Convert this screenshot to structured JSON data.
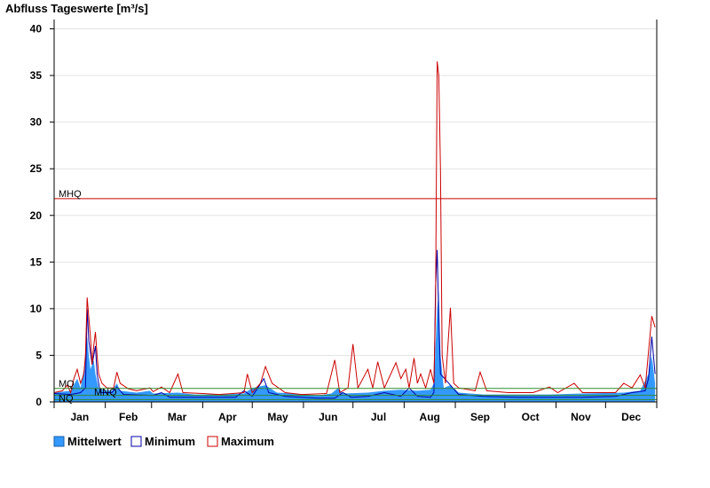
{
  "chart_data": {
    "type": "area",
    "title": "Abfluss Tageswerte [m³/s]",
    "ylim": [
      0,
      41
    ],
    "y_ticks": [
      0,
      5,
      10,
      15,
      20,
      25,
      30,
      35,
      40
    ],
    "months": [
      "Jan",
      "Feb",
      "Mar",
      "Apr",
      "May",
      "Jun",
      "Jul",
      "Aug",
      "Sep",
      "Oct",
      "Nov",
      "Dec"
    ],
    "reference_lines": [
      {
        "label": "MHQ",
        "value": 21.8,
        "color": "#cc0000"
      },
      {
        "label": "MQ",
        "value": 1.45,
        "color": "#2e8b2e"
      },
      {
        "label": "MNQ",
        "value": 0.7,
        "color": "#2e8b2e"
      },
      {
        "label": "NQ",
        "value": 0.25,
        "color": "#2e8b2e"
      }
    ],
    "series": [
      {
        "name": "Mittelwert",
        "color": "#3399ff",
        "fill": true,
        "points": [
          [
            0,
            1.0
          ],
          [
            10,
            1.2
          ],
          [
            14,
            2.5
          ],
          [
            16,
            1.5
          ],
          [
            18,
            3.5
          ],
          [
            20,
            7.0
          ],
          [
            21,
            5.0
          ],
          [
            22,
            3.5
          ],
          [
            24,
            4.5
          ],
          [
            25,
            3.0
          ],
          [
            27,
            1.5
          ],
          [
            30,
            1.3
          ],
          [
            35,
            1.2
          ],
          [
            38,
            2.0
          ],
          [
            40,
            1.2
          ],
          [
            50,
            1.0
          ],
          [
            58,
            1.2
          ],
          [
            60,
            0.9
          ],
          [
            75,
            1.0
          ],
          [
            85,
            0.8
          ],
          [
            100,
            0.8
          ],
          [
            115,
            0.9
          ],
          [
            120,
            1.5
          ],
          [
            128,
            1.8
          ],
          [
            135,
            1.0
          ],
          [
            145,
            0.9
          ],
          [
            160,
            0.7
          ],
          [
            168,
            0.9
          ],
          [
            172,
            1.5
          ],
          [
            175,
            0.9
          ],
          [
            190,
            1.0
          ],
          [
            200,
            1.2
          ],
          [
            210,
            1.3
          ],
          [
            220,
            1.2
          ],
          [
            228,
            1.3
          ],
          [
            230,
            2.0
          ],
          [
            232,
            10.0
          ],
          [
            233,
            12.0
          ],
          [
            234,
            5.0
          ],
          [
            236,
            1.5
          ],
          [
            240,
            1.8
          ],
          [
            245,
            1.0
          ],
          [
            260,
            0.8
          ],
          [
            275,
            0.8
          ],
          [
            290,
            0.8
          ],
          [
            300,
            0.8
          ],
          [
            320,
            0.9
          ],
          [
            345,
            1.0
          ],
          [
            355,
            1.2
          ],
          [
            360,
            3.0
          ],
          [
            362,
            5.0
          ],
          [
            364,
            2.0
          ]
        ]
      },
      {
        "name": "Minimum",
        "color": "#0000aa",
        "fill": false,
        "points": [
          [
            0,
            0.9
          ],
          [
            10,
            0.8
          ],
          [
            16,
            1.0
          ],
          [
            19,
            1.5
          ],
          [
            20,
            10.0
          ],
          [
            21,
            6.5
          ],
          [
            23,
            4.0
          ],
          [
            25,
            6.0
          ],
          [
            26,
            3.0
          ],
          [
            28,
            1.0
          ],
          [
            35,
            1.0
          ],
          [
            38,
            1.6
          ],
          [
            42,
            0.8
          ],
          [
            60,
            0.7
          ],
          [
            65,
            1.0
          ],
          [
            70,
            0.5
          ],
          [
            90,
            0.5
          ],
          [
            110,
            0.5
          ],
          [
            115,
            1.2
          ],
          [
            120,
            0.6
          ],
          [
            127,
            2.5
          ],
          [
            130,
            1.0
          ],
          [
            140,
            0.6
          ],
          [
            160,
            0.4
          ],
          [
            170,
            0.4
          ],
          [
            175,
            1.0
          ],
          [
            180,
            0.5
          ],
          [
            190,
            0.6
          ],
          [
            200,
            1.0
          ],
          [
            210,
            0.6
          ],
          [
            215,
            1.5
          ],
          [
            220,
            0.6
          ],
          [
            228,
            0.5
          ],
          [
            230,
            1.0
          ],
          [
            231,
            12.0
          ],
          [
            232,
            16.3
          ],
          [
            233,
            9.0
          ],
          [
            234,
            3.0
          ],
          [
            240,
            1.8
          ],
          [
            245,
            0.8
          ],
          [
            260,
            0.6
          ],
          [
            280,
            0.5
          ],
          [
            300,
            0.5
          ],
          [
            320,
            0.5
          ],
          [
            340,
            0.6
          ],
          [
            350,
            1.0
          ],
          [
            358,
            1.2
          ],
          [
            360,
            2.5
          ],
          [
            362,
            7.0
          ],
          [
            364,
            3.0
          ]
        ]
      },
      {
        "name": "Maximum",
        "color": "#cc0000",
        "fill": false,
        "points": [
          [
            0,
            1.0
          ],
          [
            5,
            1.2
          ],
          [
            8,
            1.8
          ],
          [
            10,
            1.0
          ],
          [
            12,
            2.5
          ],
          [
            14,
            3.5
          ],
          [
            16,
            2.0
          ],
          [
            18,
            3.0
          ],
          [
            19,
            5.0
          ],
          [
            20,
            11.2
          ],
          [
            21,
            9.0
          ],
          [
            22,
            7.0
          ],
          [
            23,
            4.0
          ],
          [
            24,
            6.0
          ],
          [
            25,
            7.5
          ],
          [
            26,
            5.0
          ],
          [
            27,
            3.0
          ],
          [
            29,
            2.0
          ],
          [
            32,
            1.5
          ],
          [
            36,
            1.5
          ],
          [
            38,
            3.2
          ],
          [
            40,
            2.0
          ],
          [
            45,
            1.4
          ],
          [
            50,
            1.2
          ],
          [
            58,
            1.5
          ],
          [
            60,
            1.1
          ],
          [
            65,
            1.6
          ],
          [
            70,
            1.0
          ],
          [
            75,
            3.0
          ],
          [
            78,
            1.0
          ],
          [
            90,
            0.9
          ],
          [
            100,
            0.8
          ],
          [
            115,
            1.0
          ],
          [
            117,
            3.0
          ],
          [
            120,
            1.0
          ],
          [
            125,
            2.0
          ],
          [
            128,
            3.8
          ],
          [
            132,
            2.0
          ],
          [
            140,
            1.0
          ],
          [
            150,
            0.8
          ],
          [
            165,
            0.9
          ],
          [
            170,
            4.5
          ],
          [
            173,
            1.0
          ],
          [
            178,
            1.5
          ],
          [
            181,
            6.2
          ],
          [
            184,
            1.5
          ],
          [
            190,
            3.5
          ],
          [
            193,
            1.5
          ],
          [
            196,
            4.3
          ],
          [
            200,
            1.5
          ],
          [
            207,
            4.2
          ],
          [
            210,
            2.5
          ],
          [
            213,
            3.5
          ],
          [
            215,
            1.5
          ],
          [
            218,
            4.7
          ],
          [
            220,
            2.0
          ],
          [
            222,
            3.0
          ],
          [
            225,
            1.5
          ],
          [
            228,
            3.5
          ],
          [
            230,
            2.0
          ],
          [
            231,
            10.0
          ],
          [
            232,
            36.5
          ],
          [
            233,
            35.0
          ],
          [
            234,
            25.0
          ],
          [
            235,
            5.0
          ],
          [
            237,
            2.0
          ],
          [
            240,
            10.1
          ],
          [
            242,
            2.0
          ],
          [
            245,
            1.5
          ],
          [
            255,
            1.2
          ],
          [
            258,
            3.2
          ],
          [
            262,
            1.2
          ],
          [
            275,
            1.0
          ],
          [
            290,
            1.0
          ],
          [
            300,
            1.6
          ],
          [
            305,
            1.0
          ],
          [
            315,
            2.0
          ],
          [
            320,
            1.0
          ],
          [
            340,
            1.0
          ],
          [
            345,
            2.0
          ],
          [
            350,
            1.5
          ],
          [
            355,
            2.9
          ],
          [
            358,
            1.5
          ],
          [
            362,
            9.2
          ],
          [
            364,
            8.0
          ]
        ]
      }
    ],
    "legend": {
      "position": "bottom-left",
      "entries": [
        "Mittelwert",
        "Minimum",
        "Maximum"
      ]
    }
  }
}
